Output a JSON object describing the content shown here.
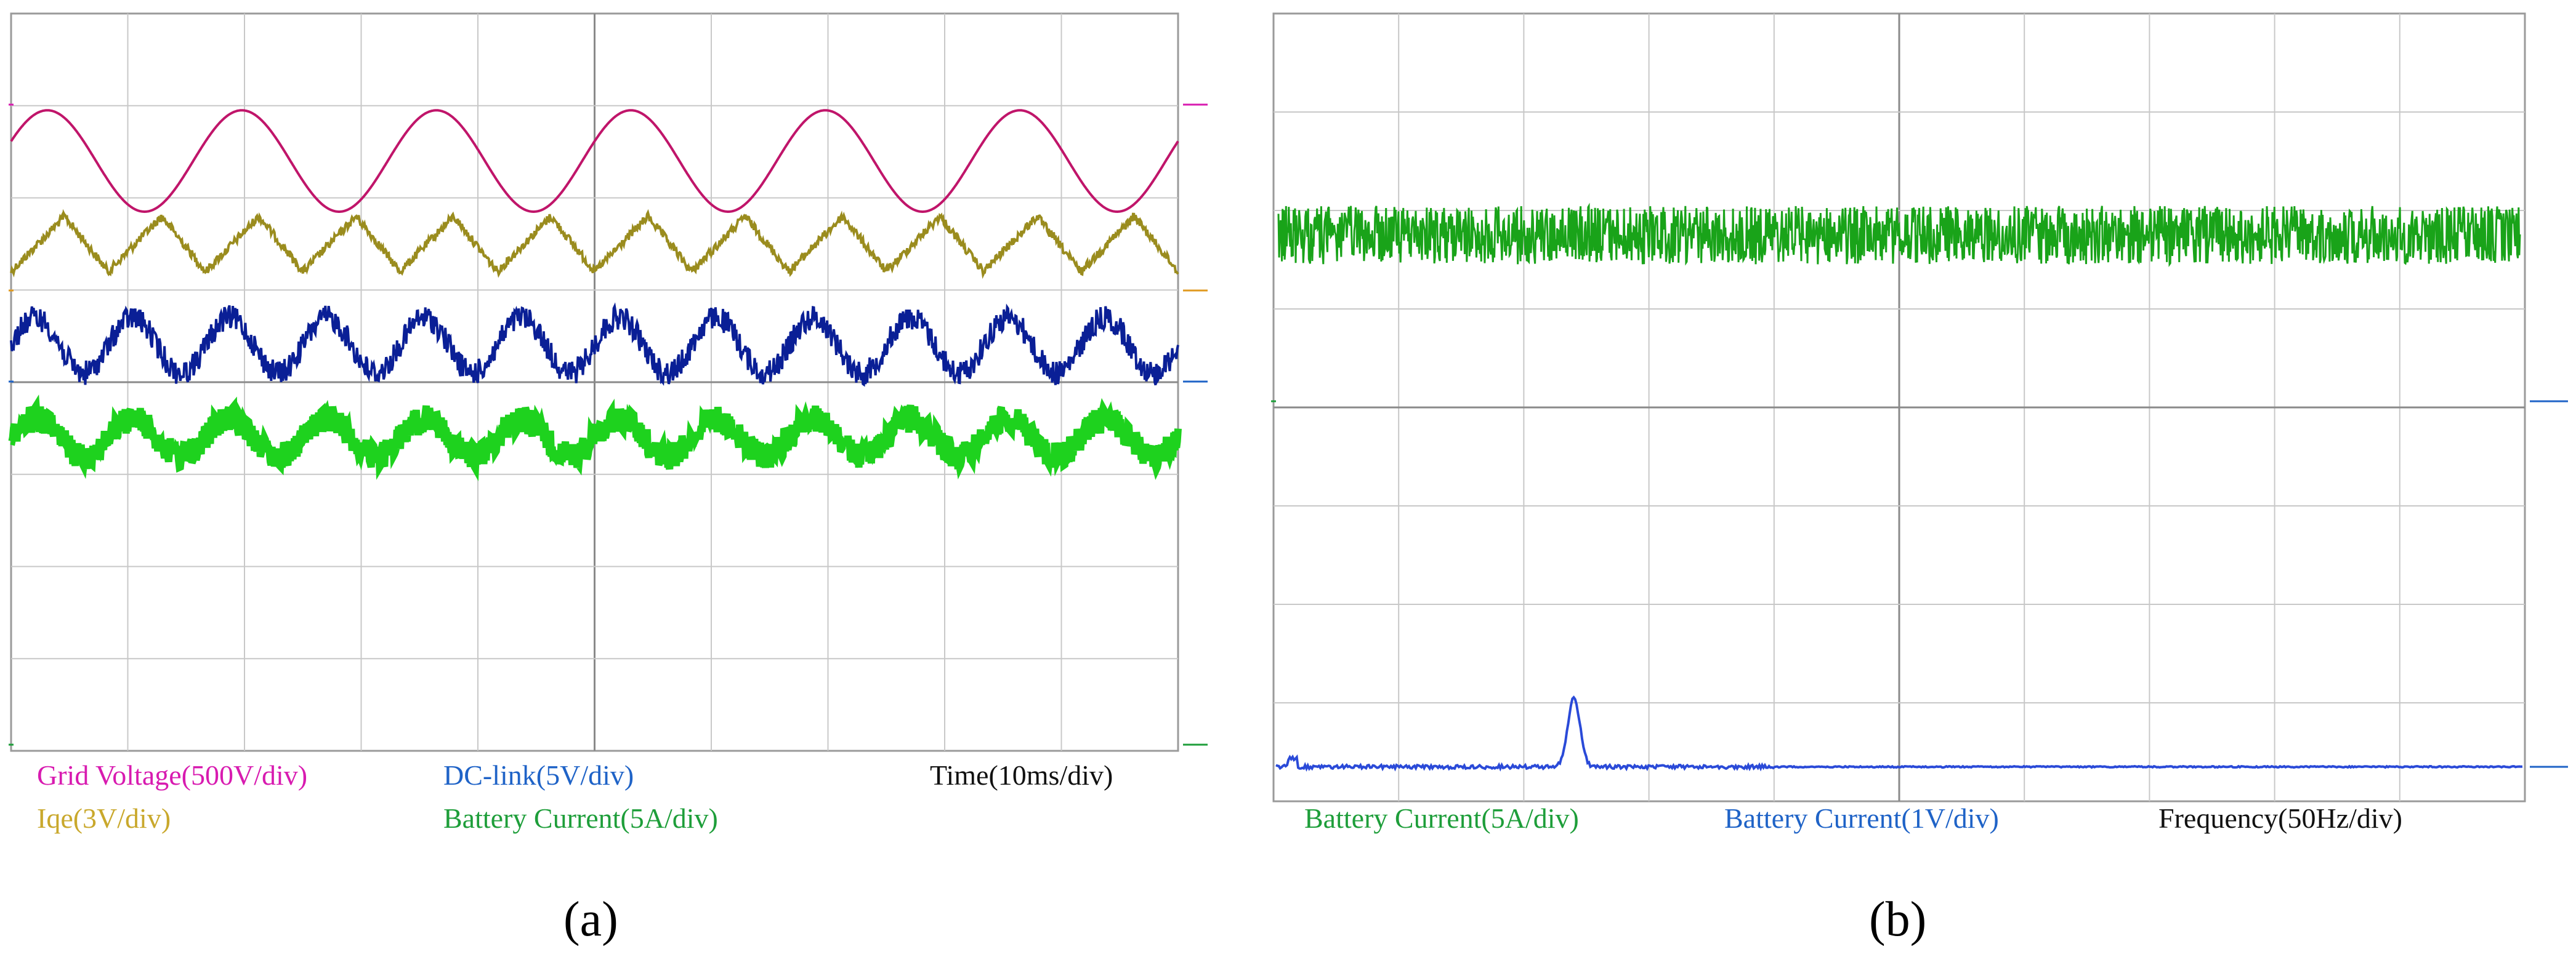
{
  "chart_data": [
    {
      "type": "line",
      "panel": "(a)",
      "x_label": "Time(10ms/div)",
      "x_unit_per_div": "10ms/div",
      "grid": true,
      "grid_divisions": {
        "x": 10,
        "y": 8
      },
      "series": [
        {
          "name": "Grid Voltage(500V/div)",
          "color": "#c0156a",
          "shape": "sinusoid",
          "cycles": 6,
          "offset_div": 1.0,
          "amplitude_div": 0.55
        },
        {
          "name": "Iqe(3V/div)",
          "color": "#9a8c1e",
          "shape": "sawtooth-ripple",
          "cycles": 12,
          "offset_div": 2.0,
          "amplitude_div": 0.3
        },
        {
          "name": "DC-link(5V/div)",
          "color": "#0a1f96",
          "shape": "noisy-sinusoid",
          "cycles": 12,
          "offset_div": 3.0,
          "amplitude_div": 0.3
        },
        {
          "name": "Battery Current(5A/div)",
          "color": "#1ed21e",
          "shape": "noisy-sinusoid",
          "cycles": 12,
          "offset_div": 4.1,
          "amplitude_div": 0.2
        }
      ]
    },
    {
      "type": "line",
      "panel": "(b)",
      "x_label": "Frequency(50Hz/div)",
      "x_unit_per_div": "50Hz/div",
      "grid": true,
      "grid_divisions": {
        "x": 10,
        "y": 8
      },
      "series": [
        {
          "name": "Battery Current(5A/div)",
          "color": "#19a319",
          "shape": "noise-band",
          "offset_div": 1.5
        },
        {
          "name": "Battery Current(1V/div)",
          "color": "#2a4ad8",
          "shape": "spectrum",
          "peak_x_div": 2.4,
          "peak_height_div": 0.7,
          "offset_div": 7.0
        }
      ]
    }
  ],
  "labels": {
    "a_grid_voltage": "Grid Voltage(500V/div)",
    "a_iqe": "Iqe(3V/div)",
    "a_dclink": "DC-link(5V/div)",
    "a_battery": "Battery Current(5A/div)",
    "a_time": "Time(10ms/div)",
    "b_battery_5a": "Battery Current(5A/div)",
    "b_battery_1v": "Battery Current(1V/div)",
    "b_freq": "Frequency(50Hz/div)",
    "panel_a": "(a)",
    "panel_b": "(b)"
  }
}
